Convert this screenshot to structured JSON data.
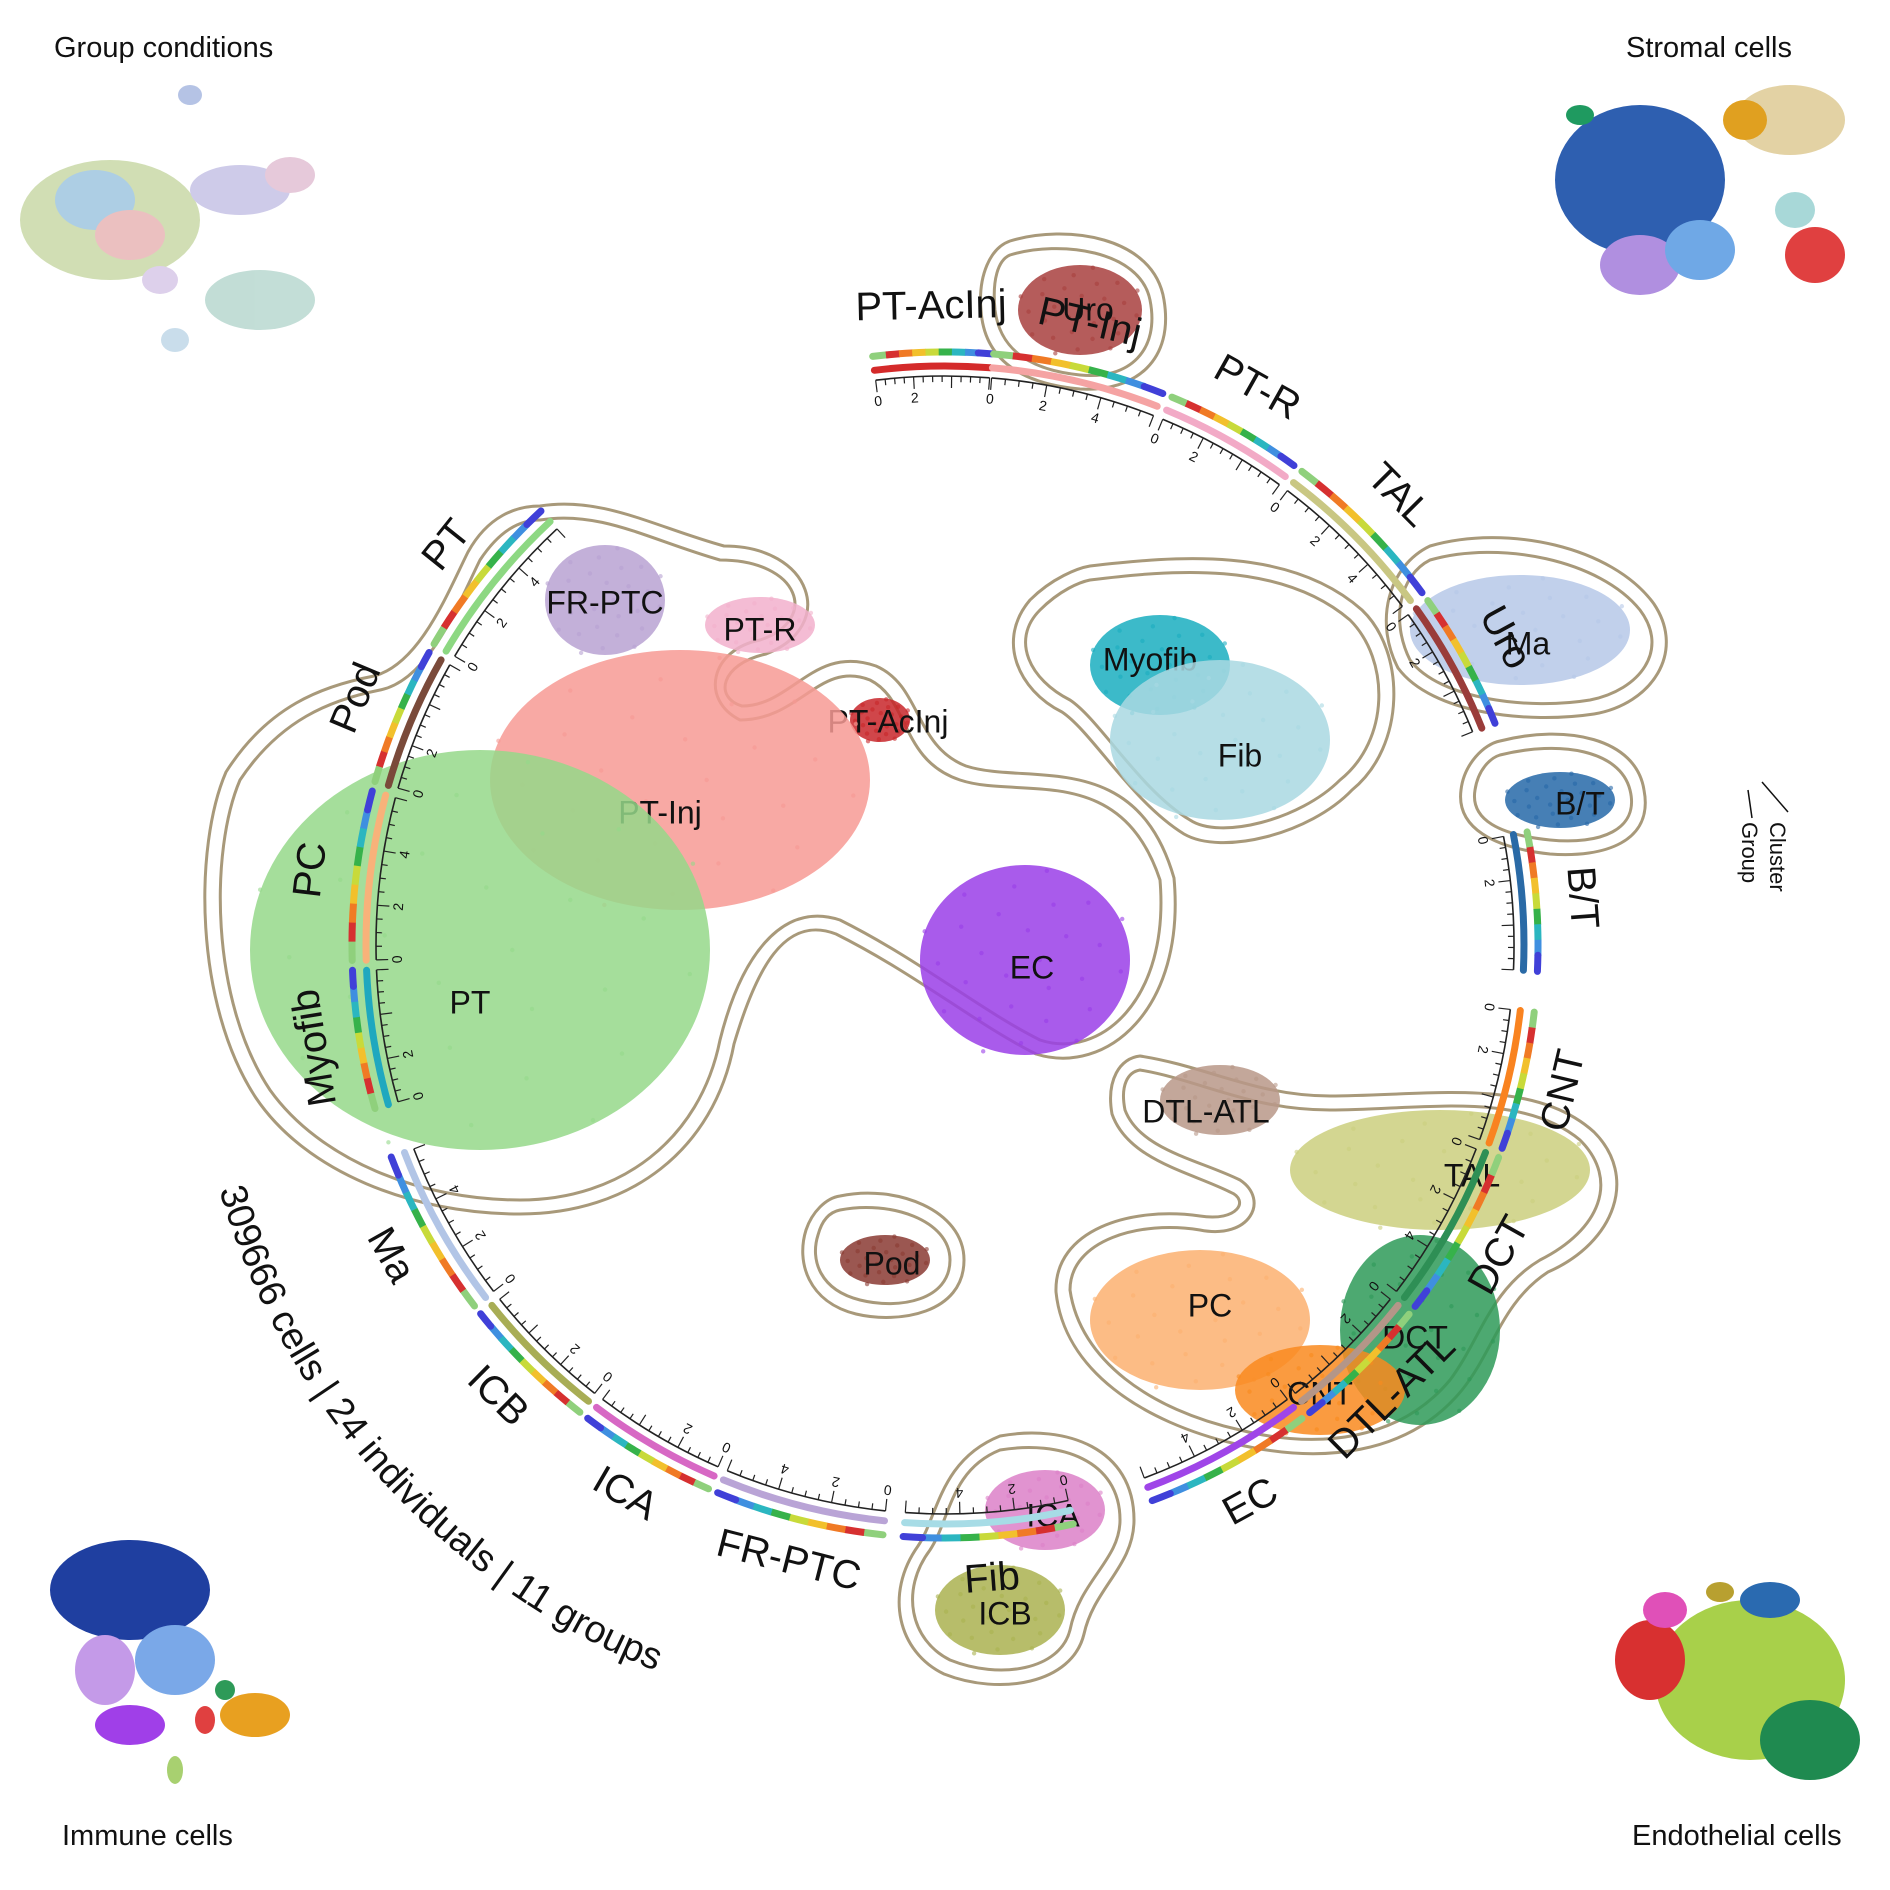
{
  "corner_titles": {
    "top_left": "Group conditions",
    "top_right": "Stromal cells",
    "bottom_left": "Immune cells",
    "bottom_right": "Endothelial cells"
  },
  "caption": "309666 cells | 24 individuals | 11 groups",
  "legend": {
    "cluster": "Cluster",
    "group": "Group"
  },
  "group_palette": [
    "#8fd07c",
    "#d63030",
    "#f07a25",
    "#f2c02c",
    "#c8da3a",
    "#36b24a",
    "#2bb6c0",
    "#3f8fe0",
    "#4040d8"
  ],
  "segments": [
    {
      "name": "PT-AcInj",
      "color": "#d42a2a",
      "ticks": [
        "0",
        "2"
      ]
    },
    {
      "name": "PT-Inj",
      "color": "#f5a3a3",
      "ticks": [
        "0",
        "2",
        "4"
      ]
    },
    {
      "name": "PT-R",
      "color": "#f2aac6",
      "ticks": [
        "0",
        "2"
      ]
    },
    {
      "name": "TAL",
      "color": "#c9c783",
      "ticks": [
        "0",
        "2",
        "4"
      ]
    },
    {
      "name": "Uro",
      "color": "#9a3c3a",
      "ticks": [
        "0",
        "2"
      ]
    },
    {
      "name": "B/T",
      "color": "#2a6aa6",
      "ticks": [
        "0",
        "2"
      ]
    },
    {
      "name": "CNT",
      "color": "#f98320",
      "ticks": [
        "0",
        "2"
      ]
    },
    {
      "name": "DCT",
      "color": "#2e8f55",
      "ticks": [
        "0",
        "2",
        "4"
      ]
    },
    {
      "name": "DTL-ATL",
      "color": "#b49688",
      "ticks": [
        "0",
        "2"
      ]
    },
    {
      "name": "EC",
      "color": "#9f45e8",
      "ticks": [
        "0",
        "2",
        "4"
      ]
    },
    {
      "name": "Fib",
      "color": "#a7dce6",
      "ticks": [
        "0",
        "2",
        "4"
      ]
    },
    {
      "name": "FR-PTC",
      "color": "#b9a4d6",
      "ticks": [
        "0",
        "2",
        "4"
      ]
    },
    {
      "name": "ICA",
      "color": "#d768c4",
      "ticks": [
        "0",
        "2"
      ]
    },
    {
      "name": "ICB",
      "color": "#a8ad55",
      "ticks": [
        "0",
        "2"
      ]
    },
    {
      "name": "Ma",
      "color": "#b2c5e6",
      "ticks": [
        "0",
        "2",
        "4"
      ]
    },
    {
      "name": "Myofib",
      "color": "#1fa8bf",
      "ticks": [
        "0",
        "2"
      ]
    },
    {
      "name": "PC",
      "color": "#f8b27a",
      "ticks": [
        "0",
        "2",
        "4"
      ]
    },
    {
      "name": "Pod",
      "color": "#7a4a3a",
      "ticks": [
        "0",
        "2"
      ]
    },
    {
      "name": "PT",
      "color": "#8dd882",
      "ticks": [
        "0",
        "2",
        "4"
      ]
    }
  ],
  "clusters": [
    {
      "name": "Uro",
      "color": "#a8403e"
    },
    {
      "name": "FR-PTC",
      "color": "#b8a2d2"
    },
    {
      "name": "PT-R",
      "color": "#f2b0cc"
    },
    {
      "name": "PT-AcInj",
      "color": "#c8262a"
    },
    {
      "name": "PT-Inj",
      "color": "#f79a94"
    },
    {
      "name": "PT",
      "color": "#95d88a"
    },
    {
      "name": "Myofib",
      "color": "#1aaec0"
    },
    {
      "name": "Fib",
      "color": "#a9d8e2"
    },
    {
      "name": "Ma",
      "color": "#b6c8e8"
    },
    {
      "name": "B/T",
      "color": "#2668a8"
    },
    {
      "name": "EC",
      "color": "#9a3ee8"
    },
    {
      "name": "DTL-ATL",
      "color": "#b89888"
    },
    {
      "name": "TAL",
      "color": "#cbcf7e"
    },
    {
      "name": "Pod",
      "color": "#8a3a32"
    },
    {
      "name": "PC",
      "color": "#fbb070"
    },
    {
      "name": "DCT",
      "color": "#2e9a58"
    },
    {
      "name": "CNT",
      "color": "#f98a1e"
    },
    {
      "name": "ICA",
      "color": "#dc80c8"
    },
    {
      "name": "ICB",
      "color": "#aab250"
    }
  ]
}
